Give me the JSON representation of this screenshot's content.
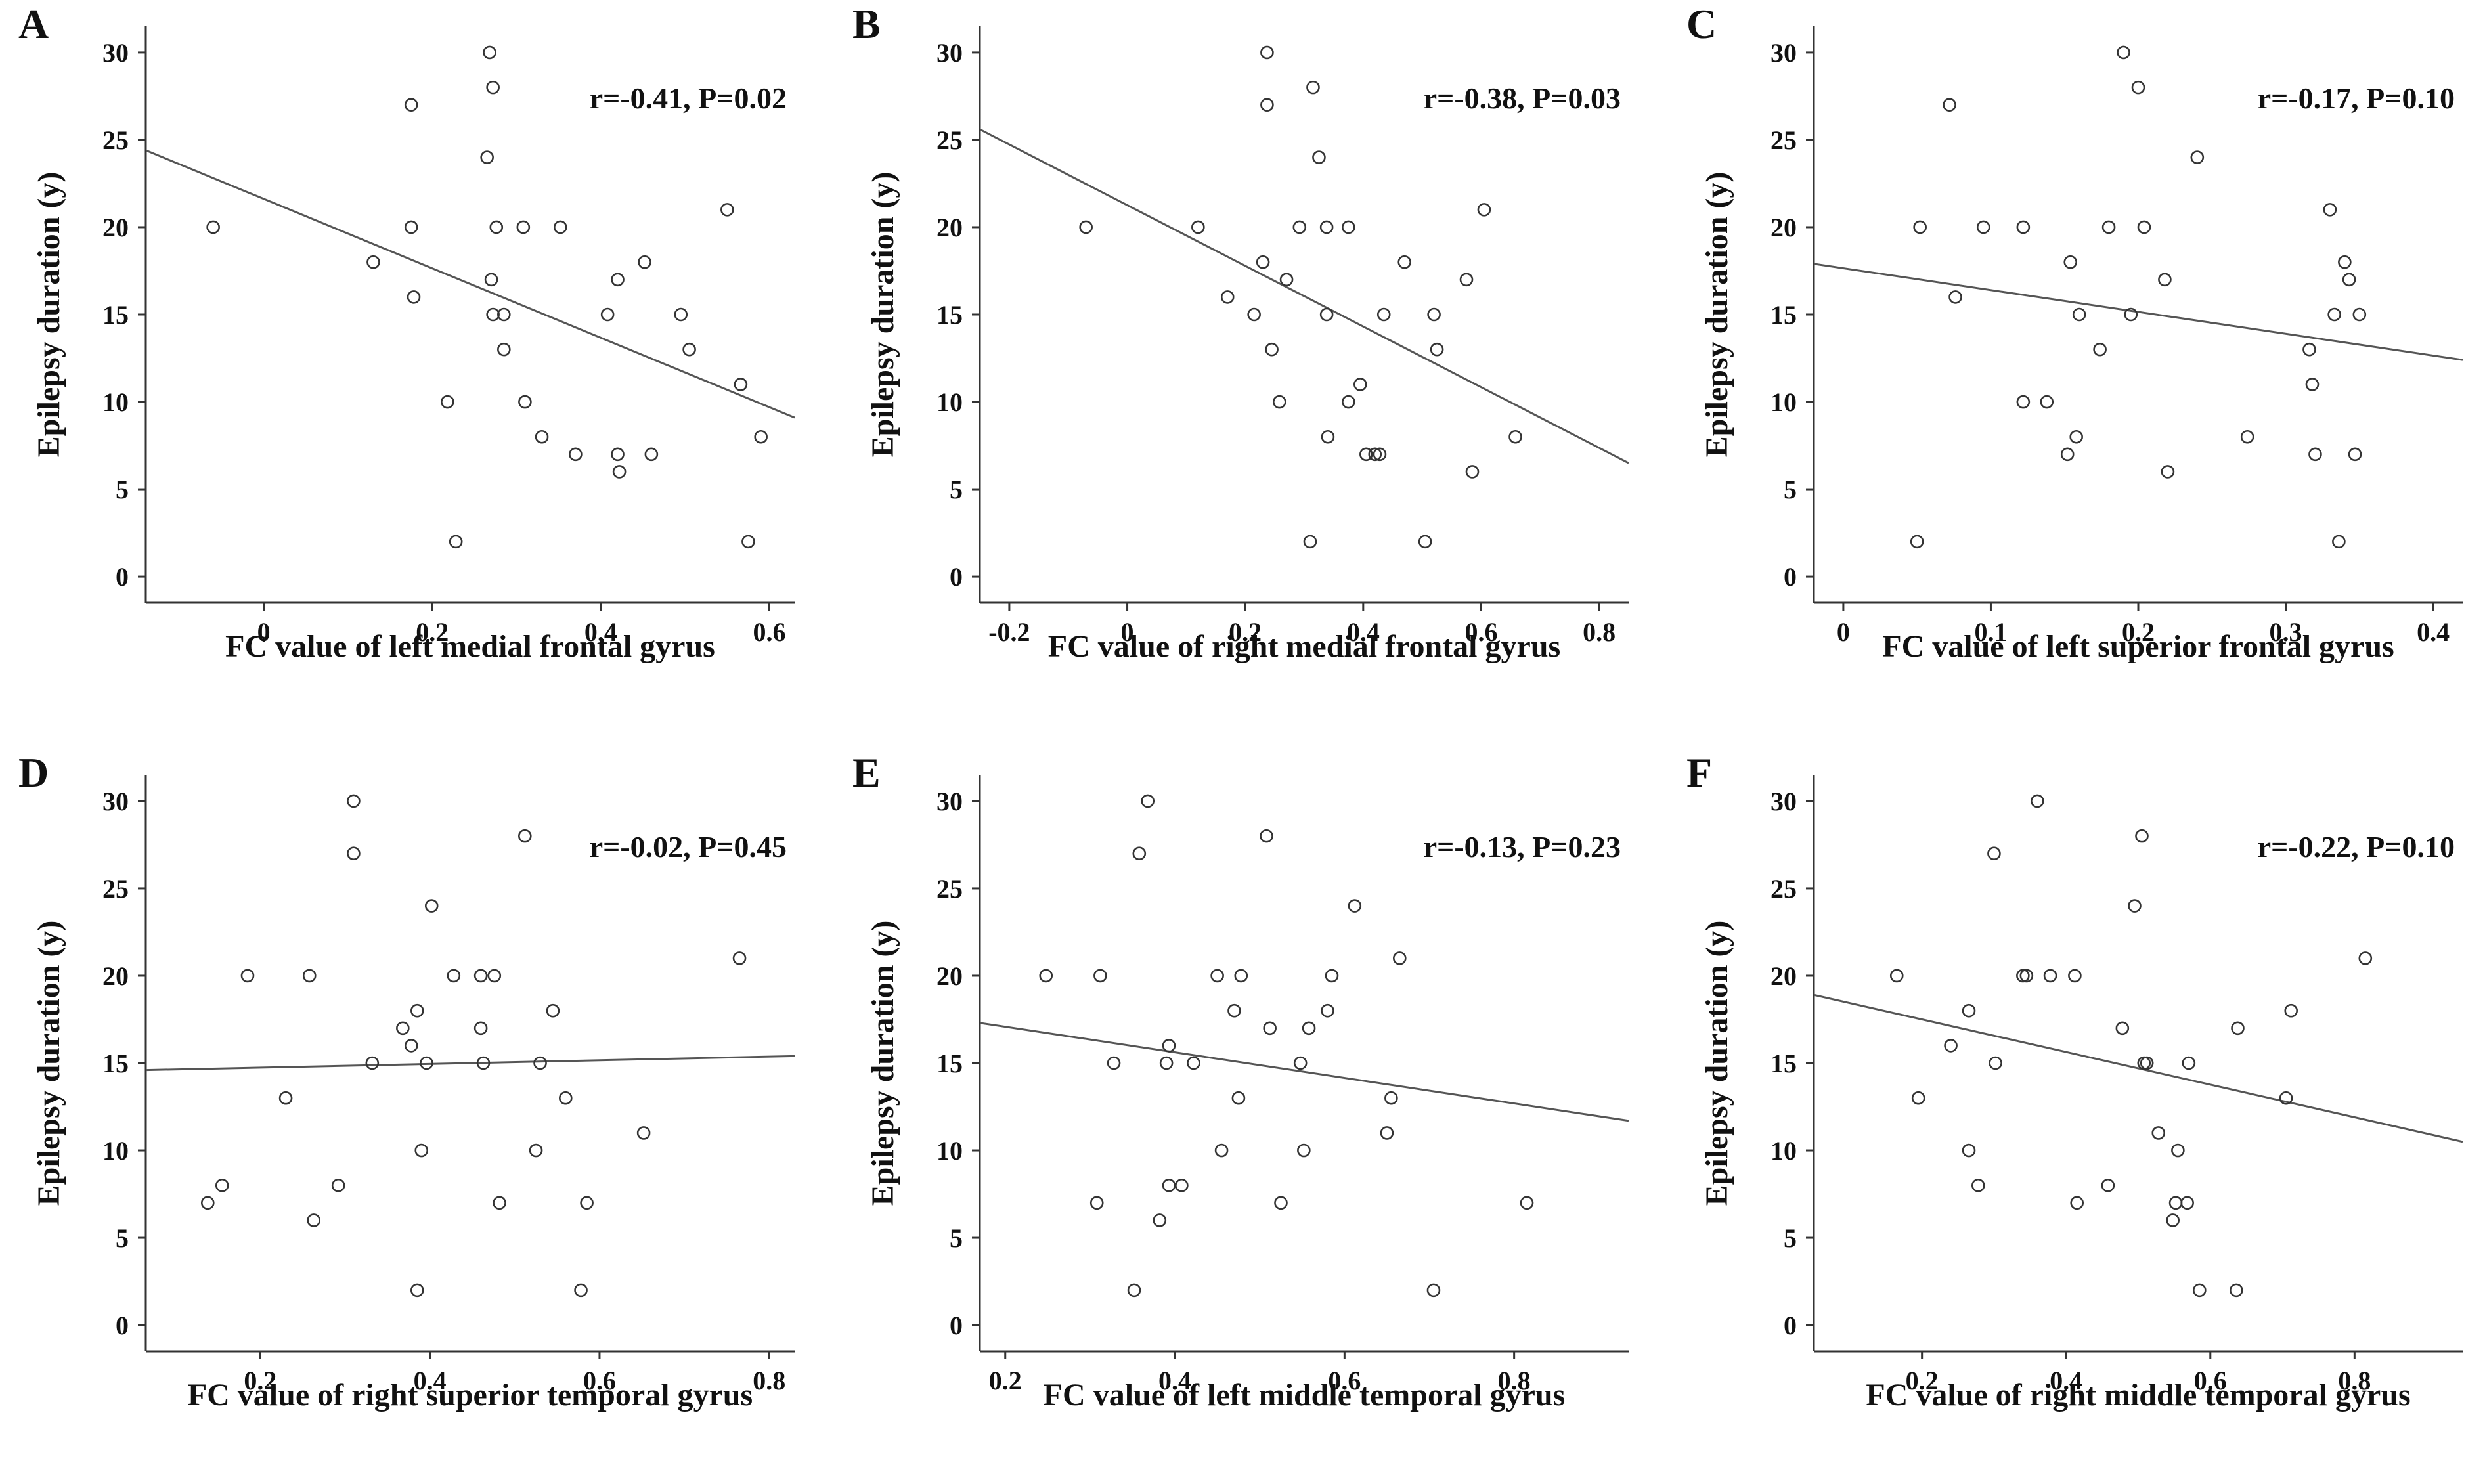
{
  "chart_data": [
    {
      "panel": "A",
      "type": "scatter",
      "xlabel": "FC value of left medial frontal gyrus",
      "ylabel": "Epilepsy duration (y)",
      "annotation": "r=-0.41, P=0.02",
      "xlim": [
        -0.14,
        0.63
      ],
      "ylim": [
        -1.5,
        31.5
      ],
      "xticks": [
        0,
        0.2,
        0.4,
        0.6
      ],
      "xtick_labels": [
        "0",
        "0.2",
        "0.4",
        "0.6"
      ],
      "yticks": [
        0,
        5,
        10,
        15,
        20,
        25,
        30
      ],
      "ytick_labels": [
        "0",
        "5",
        "10",
        "15",
        "20",
        "25",
        "30"
      ],
      "fit_line": {
        "x": [
          -0.14,
          0.63
        ],
        "y": [
          24.4,
          9.1
        ]
      },
      "points": [
        {
          "x": -0.06,
          "y": 20
        },
        {
          "x": 0.13,
          "y": 18
        },
        {
          "x": 0.175,
          "y": 27
        },
        {
          "x": 0.175,
          "y": 20
        },
        {
          "x": 0.178,
          "y": 16
        },
        {
          "x": 0.218,
          "y": 10
        },
        {
          "x": 0.228,
          "y": 2
        },
        {
          "x": 0.265,
          "y": 24
        },
        {
          "x": 0.268,
          "y": 30
        },
        {
          "x": 0.272,
          "y": 28
        },
        {
          "x": 0.27,
          "y": 17
        },
        {
          "x": 0.272,
          "y": 15
        },
        {
          "x": 0.276,
          "y": 20
        },
        {
          "x": 0.285,
          "y": 15
        },
        {
          "x": 0.285,
          "y": 13
        },
        {
          "x": 0.308,
          "y": 20
        },
        {
          "x": 0.31,
          "y": 10
        },
        {
          "x": 0.33,
          "y": 8
        },
        {
          "x": 0.352,
          "y": 20
        },
        {
          "x": 0.37,
          "y": 7
        },
        {
          "x": 0.408,
          "y": 15
        },
        {
          "x": 0.42,
          "y": 17
        },
        {
          "x": 0.42,
          "y": 7
        },
        {
          "x": 0.422,
          "y": 6
        },
        {
          "x": 0.452,
          "y": 18
        },
        {
          "x": 0.46,
          "y": 7
        },
        {
          "x": 0.495,
          "y": 15
        },
        {
          "x": 0.505,
          "y": 13
        },
        {
          "x": 0.55,
          "y": 21
        },
        {
          "x": 0.566,
          "y": 11
        },
        {
          "x": 0.575,
          "y": 2
        },
        {
          "x": 0.59,
          "y": 8
        }
      ]
    },
    {
      "panel": "B",
      "type": "scatter",
      "xlabel": "FC value of right medial frontal gyrus",
      "ylabel": "Epilepsy duration (y)",
      "annotation": "r=-0.38, P=0.03",
      "xlim": [
        -0.25,
        0.85
      ],
      "ylim": [
        -1.5,
        31.5
      ],
      "xticks": [
        -0.2,
        0,
        0.2,
        0.4,
        0.6,
        0.8
      ],
      "xtick_labels": [
        "-0.2",
        "0",
        "0.2",
        "0.4",
        "0.6",
        "0.8"
      ],
      "yticks": [
        0,
        5,
        10,
        15,
        20,
        25,
        30
      ],
      "ytick_labels": [
        "0",
        "5",
        "10",
        "15",
        "20",
        "25",
        "30"
      ],
      "fit_line": {
        "x": [
          -0.25,
          0.85
        ],
        "y": [
          25.6,
          6.5
        ]
      },
      "points": [
        {
          "x": -0.07,
          "y": 20
        },
        {
          "x": 0.12,
          "y": 20
        },
        {
          "x": 0.17,
          "y": 16
        },
        {
          "x": 0.215,
          "y": 15
        },
        {
          "x": 0.23,
          "y": 18
        },
        {
          "x": 0.237,
          "y": 30
        },
        {
          "x": 0.237,
          "y": 27
        },
        {
          "x": 0.245,
          "y": 13
        },
        {
          "x": 0.258,
          "y": 10
        },
        {
          "x": 0.27,
          "y": 17
        },
        {
          "x": 0.292,
          "y": 20
        },
        {
          "x": 0.31,
          "y": 2
        },
        {
          "x": 0.315,
          "y": 28
        },
        {
          "x": 0.325,
          "y": 24
        },
        {
          "x": 0.338,
          "y": 20
        },
        {
          "x": 0.338,
          "y": 15
        },
        {
          "x": 0.34,
          "y": 8
        },
        {
          "x": 0.375,
          "y": 20
        },
        {
          "x": 0.375,
          "y": 10
        },
        {
          "x": 0.395,
          "y": 11
        },
        {
          "x": 0.405,
          "y": 7
        },
        {
          "x": 0.42,
          "y": 7
        },
        {
          "x": 0.428,
          "y": 7
        },
        {
          "x": 0.435,
          "y": 15
        },
        {
          "x": 0.47,
          "y": 18
        },
        {
          "x": 0.505,
          "y": 2
        },
        {
          "x": 0.52,
          "y": 15
        },
        {
          "x": 0.525,
          "y": 13
        },
        {
          "x": 0.575,
          "y": 17
        },
        {
          "x": 0.585,
          "y": 6
        },
        {
          "x": 0.605,
          "y": 21
        },
        {
          "x": 0.658,
          "y": 8
        }
      ]
    },
    {
      "panel": "C",
      "type": "scatter",
      "xlabel": "FC value of left superior frontal gyrus",
      "ylabel": "Epilepsy duration (y)",
      "annotation": "r=-0.17, P=0.10",
      "xlim": [
        -0.02,
        0.42
      ],
      "ylim": [
        -1.5,
        31.5
      ],
      "xticks": [
        0,
        0.1,
        0.2,
        0.3,
        0.4
      ],
      "xtick_labels": [
        "0",
        "0.1",
        "0.2",
        "0.3",
        "0.4"
      ],
      "yticks": [
        0,
        5,
        10,
        15,
        20,
        25,
        30
      ],
      "ytick_labels": [
        "0",
        "5",
        "10",
        "15",
        "20",
        "25",
        "30"
      ],
      "fit_line": {
        "x": [
          -0.02,
          0.42
        ],
        "y": [
          17.9,
          12.4
        ]
      },
      "points": [
        {
          "x": 0.05,
          "y": 2
        },
        {
          "x": 0.052,
          "y": 20
        },
        {
          "x": 0.072,
          "y": 27
        },
        {
          "x": 0.076,
          "y": 16
        },
        {
          "x": 0.095,
          "y": 20
        },
        {
          "x": 0.122,
          "y": 20
        },
        {
          "x": 0.122,
          "y": 10
        },
        {
          "x": 0.138,
          "y": 10
        },
        {
          "x": 0.152,
          "y": 7
        },
        {
          "x": 0.154,
          "y": 18
        },
        {
          "x": 0.158,
          "y": 8
        },
        {
          "x": 0.16,
          "y": 15
        },
        {
          "x": 0.174,
          "y": 13
        },
        {
          "x": 0.18,
          "y": 20
        },
        {
          "x": 0.19,
          "y": 30
        },
        {
          "x": 0.195,
          "y": 15
        },
        {
          "x": 0.2,
          "y": 28
        },
        {
          "x": 0.204,
          "y": 20
        },
        {
          "x": 0.218,
          "y": 17
        },
        {
          "x": 0.22,
          "y": 6
        },
        {
          "x": 0.24,
          "y": 24
        },
        {
          "x": 0.274,
          "y": 8
        },
        {
          "x": 0.316,
          "y": 13
        },
        {
          "x": 0.318,
          "y": 11
        },
        {
          "x": 0.32,
          "y": 7
        },
        {
          "x": 0.33,
          "y": 21
        },
        {
          "x": 0.333,
          "y": 15
        },
        {
          "x": 0.336,
          "y": 2
        },
        {
          "x": 0.34,
          "y": 18
        },
        {
          "x": 0.343,
          "y": 17
        },
        {
          "x": 0.347,
          "y": 7
        },
        {
          "x": 0.35,
          "y": 15
        }
      ]
    },
    {
      "panel": "D",
      "type": "scatter",
      "xlabel": "FC value of right superior temporal gyrus",
      "ylabel": "Epilepsy duration (y)",
      "annotation": "r=-0.02, P=0.45",
      "xlim": [
        0.065,
        0.83
      ],
      "ylim": [
        -1.5,
        31.5
      ],
      "xticks": [
        0.2,
        0.4,
        0.6,
        0.8
      ],
      "xtick_labels": [
        "0.2",
        "0.4",
        "0.6",
        "0.8"
      ],
      "yticks": [
        0,
        5,
        10,
        15,
        20,
        25,
        30
      ],
      "ytick_labels": [
        "0",
        "5",
        "10",
        "15",
        "20",
        "25",
        "30"
      ],
      "fit_line": {
        "x": [
          0.065,
          0.83
        ],
        "y": [
          14.6,
          15.4
        ]
      },
      "points": [
        {
          "x": 0.138,
          "y": 7
        },
        {
          "x": 0.155,
          "y": 8
        },
        {
          "x": 0.185,
          "y": 20
        },
        {
          "x": 0.23,
          "y": 13
        },
        {
          "x": 0.258,
          "y": 20
        },
        {
          "x": 0.263,
          "y": 6
        },
        {
          "x": 0.292,
          "y": 8
        },
        {
          "x": 0.31,
          "y": 30
        },
        {
          "x": 0.31,
          "y": 27
        },
        {
          "x": 0.332,
          "y": 15
        },
        {
          "x": 0.368,
          "y": 17
        },
        {
          "x": 0.378,
          "y": 16
        },
        {
          "x": 0.385,
          "y": 18
        },
        {
          "x": 0.385,
          "y": 2
        },
        {
          "x": 0.39,
          "y": 10
        },
        {
          "x": 0.396,
          "y": 15
        },
        {
          "x": 0.402,
          "y": 24
        },
        {
          "x": 0.428,
          "y": 20
        },
        {
          "x": 0.46,
          "y": 20
        },
        {
          "x": 0.46,
          "y": 17
        },
        {
          "x": 0.463,
          "y": 15
        },
        {
          "x": 0.476,
          "y": 20
        },
        {
          "x": 0.482,
          "y": 7
        },
        {
          "x": 0.512,
          "y": 28
        },
        {
          "x": 0.525,
          "y": 10
        },
        {
          "x": 0.53,
          "y": 15
        },
        {
          "x": 0.545,
          "y": 18
        },
        {
          "x": 0.56,
          "y": 13
        },
        {
          "x": 0.578,
          "y": 2
        },
        {
          "x": 0.585,
          "y": 7
        },
        {
          "x": 0.652,
          "y": 11
        },
        {
          "x": 0.765,
          "y": 21
        }
      ]
    },
    {
      "panel": "E",
      "type": "scatter",
      "xlabel": "FC value of left middle temporal gyrus",
      "ylabel": "Epilepsy duration (y)",
      "annotation": "r=-0.13, P=0.23",
      "xlim": [
        0.17,
        0.935
      ],
      "ylim": [
        -1.5,
        31.5
      ],
      "xticks": [
        0.2,
        0.4,
        0.6,
        0.8
      ],
      "xtick_labels": [
        "0.2",
        "0.4",
        "0.6",
        "0.8"
      ],
      "yticks": [
        0,
        5,
        10,
        15,
        20,
        25,
        30
      ],
      "ytick_labels": [
        "0",
        "5",
        "10",
        "15",
        "20",
        "25",
        "30"
      ],
      "fit_line": {
        "x": [
          0.17,
          0.935
        ],
        "y": [
          17.3,
          11.7
        ]
      },
      "points": [
        {
          "x": 0.248,
          "y": 20
        },
        {
          "x": 0.308,
          "y": 7
        },
        {
          "x": 0.312,
          "y": 20
        },
        {
          "x": 0.328,
          "y": 15
        },
        {
          "x": 0.352,
          "y": 2
        },
        {
          "x": 0.358,
          "y": 27
        },
        {
          "x": 0.368,
          "y": 30
        },
        {
          "x": 0.382,
          "y": 6
        },
        {
          "x": 0.39,
          "y": 15
        },
        {
          "x": 0.393,
          "y": 8
        },
        {
          "x": 0.393,
          "y": 16
        },
        {
          "x": 0.408,
          "y": 8
        },
        {
          "x": 0.422,
          "y": 15
        },
        {
          "x": 0.45,
          "y": 20
        },
        {
          "x": 0.455,
          "y": 10
        },
        {
          "x": 0.47,
          "y": 18
        },
        {
          "x": 0.475,
          "y": 13
        },
        {
          "x": 0.478,
          "y": 20
        },
        {
          "x": 0.508,
          "y": 28
        },
        {
          "x": 0.512,
          "y": 17
        },
        {
          "x": 0.525,
          "y": 7
        },
        {
          "x": 0.548,
          "y": 15
        },
        {
          "x": 0.552,
          "y": 10
        },
        {
          "x": 0.558,
          "y": 17
        },
        {
          "x": 0.58,
          "y": 18
        },
        {
          "x": 0.585,
          "y": 20
        },
        {
          "x": 0.612,
          "y": 24
        },
        {
          "x": 0.65,
          "y": 11
        },
        {
          "x": 0.655,
          "y": 13
        },
        {
          "x": 0.665,
          "y": 21
        },
        {
          "x": 0.705,
          "y": 2
        },
        {
          "x": 0.815,
          "y": 7
        }
      ]
    },
    {
      "panel": "F",
      "type": "scatter",
      "xlabel": "FC value of right middle temporal gyrus",
      "ylabel": "Epilepsy duration (y)",
      "annotation": "r=-0.22, P=0.10",
      "xlim": [
        0.05,
        0.95
      ],
      "ylim": [
        -1.5,
        31.5
      ],
      "xticks": [
        0.2,
        0.4,
        0.6,
        0.8
      ],
      "xtick_labels": [
        "0.2",
        "0.4",
        "0.6",
        "0.8"
      ],
      "yticks": [
        0,
        5,
        10,
        15,
        20,
        25,
        30
      ],
      "ytick_labels": [
        "0",
        "5",
        "10",
        "15",
        "20",
        "25",
        "30"
      ],
      "fit_line": {
        "x": [
          0.05,
          0.95
        ],
        "y": [
          18.9,
          10.5
        ]
      },
      "points": [
        {
          "x": 0.165,
          "y": 20
        },
        {
          "x": 0.195,
          "y": 13
        },
        {
          "x": 0.24,
          "y": 16
        },
        {
          "x": 0.265,
          "y": 18
        },
        {
          "x": 0.265,
          "y": 10
        },
        {
          "x": 0.278,
          "y": 8
        },
        {
          "x": 0.3,
          "y": 27
        },
        {
          "x": 0.302,
          "y": 15
        },
        {
          "x": 0.34,
          "y": 20
        },
        {
          "x": 0.345,
          "y": 20
        },
        {
          "x": 0.36,
          "y": 30
        },
        {
          "x": 0.378,
          "y": 20
        },
        {
          "x": 0.412,
          "y": 20
        },
        {
          "x": 0.415,
          "y": 7
        },
        {
          "x": 0.458,
          "y": 8
        },
        {
          "x": 0.478,
          "y": 17
        },
        {
          "x": 0.495,
          "y": 24
        },
        {
          "x": 0.505,
          "y": 28
        },
        {
          "x": 0.508,
          "y": 15
        },
        {
          "x": 0.512,
          "y": 15
        },
        {
          "x": 0.528,
          "y": 11
        },
        {
          "x": 0.548,
          "y": 6
        },
        {
          "x": 0.552,
          "y": 7
        },
        {
          "x": 0.555,
          "y": 10
        },
        {
          "x": 0.568,
          "y": 7
        },
        {
          "x": 0.57,
          "y": 15
        },
        {
          "x": 0.585,
          "y": 2
        },
        {
          "x": 0.636,
          "y": 2
        },
        {
          "x": 0.638,
          "y": 17
        },
        {
          "x": 0.705,
          "y": 13
        },
        {
          "x": 0.712,
          "y": 18
        },
        {
          "x": 0.815,
          "y": 21
        }
      ]
    }
  ]
}
